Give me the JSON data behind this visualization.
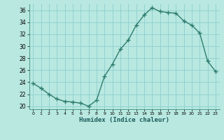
{
  "x": [
    0,
    1,
    2,
    3,
    4,
    5,
    6,
    7,
    8,
    9,
    10,
    11,
    12,
    13,
    14,
    15,
    16,
    17,
    18,
    19,
    20,
    21,
    22,
    23
  ],
  "y": [
    23.8,
    23.0,
    22.0,
    21.2,
    20.8,
    20.7,
    20.5,
    20.0,
    21.0,
    25.0,
    27.0,
    29.5,
    31.0,
    33.5,
    35.2,
    36.4,
    35.8,
    35.6,
    35.5,
    34.2,
    33.5,
    32.2,
    27.5,
    25.8
  ],
  "ylim": [
    19.5,
    37.0
  ],
  "xlim": [
    -0.5,
    23.5
  ],
  "yticks": [
    20,
    22,
    24,
    26,
    28,
    30,
    32,
    34,
    36
  ],
  "xticks": [
    0,
    1,
    2,
    3,
    4,
    5,
    6,
    7,
    8,
    9,
    10,
    11,
    12,
    13,
    14,
    15,
    16,
    17,
    18,
    19,
    20,
    21,
    22,
    23
  ],
  "xlabel": "Humidex (Indice chaleur)",
  "line_color": "#2e7d6e",
  "bg_color": "#b8e8e0",
  "grid_color": "#8ecece",
  "marker": "+",
  "marker_size": 4,
  "linewidth": 1.0
}
